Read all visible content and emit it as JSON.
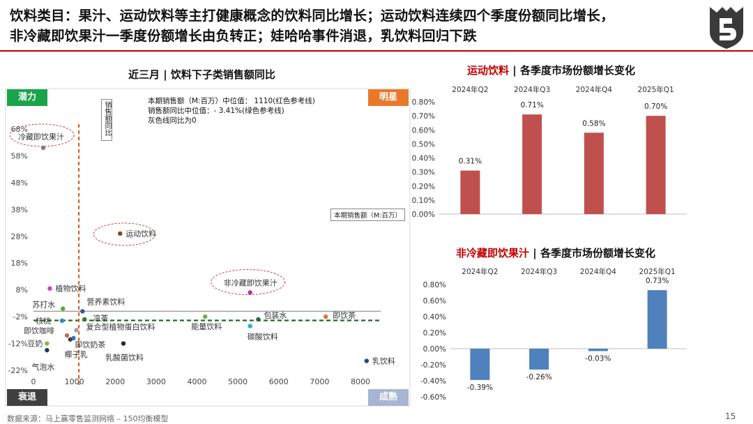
{
  "header": {
    "line1": "饮料类目：果汁、运动饮料等主打健康概念的饮料同比增长；运动饮料连续四个季度份额同比增长，",
    "line2": "非冷藏即饮果汁一季度份额增长由负转正；娃哈哈事件消退，乳饮料回归下跌"
  },
  "scatter_panel": {
    "title": "近三月 | 饮料下子类销售额同比",
    "quadrants": {
      "top_left": "潜力",
      "top_right": "明星",
      "bottom_left": "衰退",
      "bottom_right": "成熟"
    },
    "notes": [
      "本期销售额（M:百万）中位值：  1110(红色参考线)",
      "销售额同比中位值：- 3.41%(绿色参考线)",
      "灰色线同比为0"
    ],
    "y_axis_label": "销售额同比",
    "x_axis_label": "本期销售额（M:百万）"
  },
  "sport_panel": {
    "title_hl": "运动饮料",
    "title_rest": " | 各季度市场份额增长变化"
  },
  "juice_panel": {
    "title_hl": "非冷藏即饮果汁",
    "title_rest": " | 各季度市场份额增长变化"
  },
  "footer": {
    "source": "数据来源：马上赢零售监测网络 – 150均衡模型",
    "page": "15"
  },
  "colors": {
    "accent_red": "#c00000",
    "bar_red": "#c0504d",
    "bar_blue": "#4f81bd",
    "potential": "#1aa34a",
    "star": "#e8792b",
    "decline": "#404040",
    "mature": "#a6b6d2"
  },
  "chart_data": [
    {
      "type": "scatter",
      "title": "近三月 | 饮料下子类销售额同比",
      "xlabel": "本期销售额（M:百万）",
      "ylabel": "销售额同比",
      "xlim": [
        0,
        8500
      ],
      "ylim": [
        -22,
        70
      ],
      "x_ticks": [
        0,
        1000,
        2000,
        3000,
        4000,
        5000,
        6000,
        7000,
        8000
      ],
      "y_ticks": [
        68,
        58,
        48,
        38,
        28,
        18,
        8,
        -2,
        -12,
        -22
      ],
      "y_tick_labels": [
        "68%",
        "58%",
        "48%",
        "38%",
        "28%",
        "18%",
        "8%",
        "-2%",
        "-12%",
        "-22%"
      ],
      "reference_lines": {
        "median_x": 1110,
        "median_y": -3.41,
        "zero_y": 0
      },
      "points": [
        {
          "name": "冷藏即饮果汁",
          "x": 240,
          "y": 61,
          "color": "#7f7f7f",
          "circled": true
        },
        {
          "name": "运动饮料",
          "x": 2120,
          "y": 29,
          "color": "#8b4513",
          "circled": true
        },
        {
          "name": "非冷藏即饮果汁",
          "x": 5300,
          "y": 7,
          "color": "#b030b0",
          "circled": true
        },
        {
          "name": "植物饮料",
          "x": 400,
          "y": 8.5,
          "color": "#d040c0"
        },
        {
          "name": "苏打水",
          "x": 720,
          "y": 1,
          "color": "#5aa830"
        },
        {
          "name": "营养素饮料",
          "x": 1200,
          "y": 0,
          "color": "#2f5597"
        },
        {
          "name": "核桃",
          "x": 700,
          "y": -3.5,
          "color": "#3f7fbf"
        },
        {
          "name": "凉茶",
          "x": 1250,
          "y": -3,
          "color": "#2e7d32"
        },
        {
          "name": "包装水",
          "x": 5500,
          "y": -3,
          "color": "#1f6b3a"
        },
        {
          "name": "即饮茶",
          "x": 7150,
          "y": -2,
          "color": "#e07040"
        },
        {
          "name": "能量饮料",
          "x": 4200,
          "y": -2,
          "color": "#70ad47"
        },
        {
          "name": "碳酸饮料",
          "x": 5300,
          "y": -5.5,
          "color": "#2ab0c0"
        },
        {
          "name": "复合型植物蛋白饮料",
          "x": 1050,
          "y": -7,
          "color": "#a0a0a0"
        },
        {
          "name": "即饮咖啡",
          "x": 820,
          "y": -9,
          "color": "#c07050"
        },
        {
          "name": "即饮奶茶",
          "x": 980,
          "y": -10,
          "color": "#4472c4"
        },
        {
          "name": "椰子乳",
          "x": 900,
          "y": -10.5,
          "color": "#404040"
        },
        {
          "name": "豆奶",
          "x": 330,
          "y": -12,
          "color": "#7fbf3f"
        },
        {
          "name": "乳酸菌饮料",
          "x": 2200,
          "y": -12,
          "color": "#222a35"
        },
        {
          "name": "气泡水",
          "x": 330,
          "y": -14.5,
          "color": "#1f3864"
        },
        {
          "name": "乳饮料",
          "x": 8150,
          "y": -18.5,
          "color": "#1f4e79"
        }
      ]
    },
    {
      "type": "bar",
      "title": "运动饮料 | 各季度市场份额增长变化",
      "categories": [
        "2024年Q2",
        "2024年Q3",
        "2024年Q4",
        "2025年Q1"
      ],
      "values": [
        0.31,
        0.71,
        0.58,
        0.7
      ],
      "value_labels": [
        "0.31%",
        "0.71%",
        "0.58%",
        "0.70%"
      ],
      "ylim": [
        0,
        0.8
      ],
      "y_ticks": [
        0.8,
        0.7,
        0.6,
        0.5,
        0.4,
        0.3,
        0.2,
        0.1,
        0.0
      ],
      "y_tick_labels": [
        "0.80%",
        "0.70%",
        "0.60%",
        "0.50%",
        "0.40%",
        "0.30%",
        "0.20%",
        "0.10%",
        "0.00%"
      ],
      "color": "#c0504d"
    },
    {
      "type": "bar",
      "title": "非冷藏即饮果汁 | 各季度市场份额增长变化",
      "categories": [
        "2024年Q2",
        "2024年Q3",
        "2024年Q4",
        "2025年Q1"
      ],
      "values": [
        -0.39,
        -0.26,
        -0.03,
        0.73
      ],
      "value_labels": [
        "-0.39%",
        "-0.26%",
        "-0.03%",
        "0.73%"
      ],
      "ylim": [
        -0.6,
        0.8
      ],
      "y_ticks": [
        0.8,
        0.6,
        0.4,
        0.2,
        0.0,
        -0.2,
        -0.4,
        -0.6
      ],
      "y_tick_labels": [
        "0.80%",
        "0.60%",
        "0.40%",
        "0.20%",
        "0.00%",
        "-0.20%",
        "-0.40%",
        "-0.60%"
      ],
      "color": "#4f81bd"
    }
  ]
}
